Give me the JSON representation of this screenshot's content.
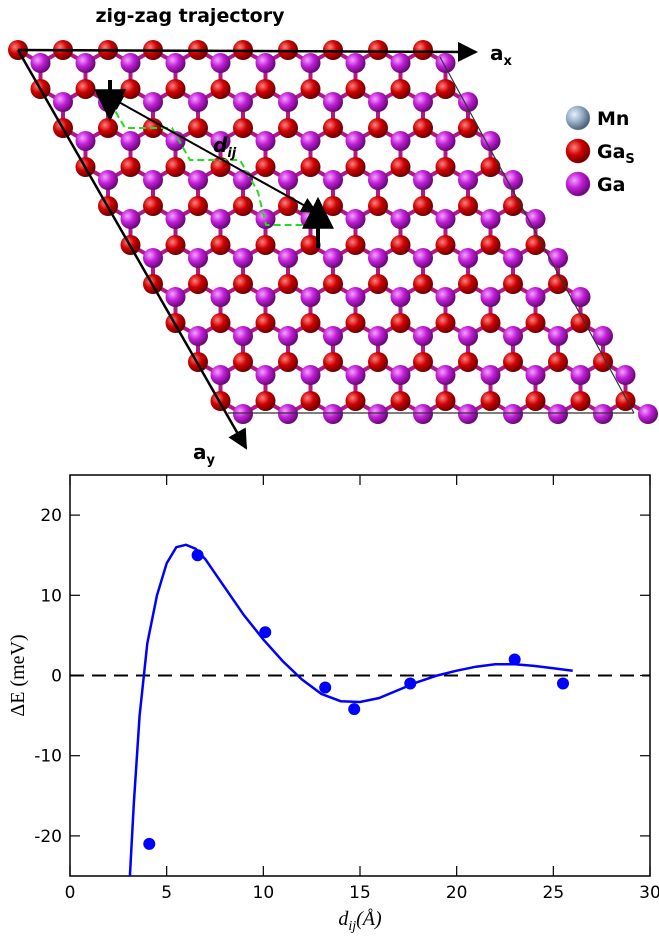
{
  "diagram": {
    "title": "zig-zag trajectory",
    "ax_label": {
      "base": "a",
      "sub": "x"
    },
    "ay_label": {
      "base": "a",
      "sub": "y"
    },
    "dij_label": {
      "base": "d",
      "sub": "ij"
    },
    "legend": [
      {
        "base": "Mn",
        "sub": null,
        "color": "#9ab0c8"
      },
      {
        "base": "Ga",
        "sub": "S",
        "color": "#d00000"
      },
      {
        "base": "Ga",
        "sub": null,
        "color": "#c21ed8"
      }
    ]
  },
  "chart_data": {
    "type": "scatter",
    "x_label": {
      "base": "d",
      "sub": "ij",
      "rest": "(Å)"
    },
    "y_label": "ΔE (meV)",
    "xlim": [
      0,
      30
    ],
    "xticks": [
      0,
      5,
      10,
      15,
      20,
      25,
      30
    ],
    "ylim": [
      -25,
      25
    ],
    "yticks": [
      -20,
      -10,
      0,
      10,
      20
    ],
    "hline": 0,
    "series": [
      {
        "style": "line",
        "color": "#0000ff",
        "x": [
          3.1,
          3.3,
          3.6,
          4.0,
          4.5,
          5.0,
          5.5,
          6.0,
          6.5,
          7.0,
          8.0,
          9.0,
          10.0,
          11.0,
          12.0,
          13.0,
          14.0,
          15.0,
          16.0,
          17.0,
          18.0,
          19.0,
          20.0,
          21.0,
          22.0,
          23.0,
          24.0,
          25.0,
          26.0
        ],
        "values": [
          -25,
          -16,
          -5,
          4,
          10,
          14,
          16,
          16.3,
          15.8,
          14.5,
          11,
          7.5,
          4.5,
          1.8,
          -0.5,
          -2.3,
          -3.2,
          -3.3,
          -2.8,
          -1.8,
          -0.8,
          0,
          0.6,
          1.1,
          1.4,
          1.4,
          1.2,
          0.9,
          0.6
        ]
      },
      {
        "style": "markers",
        "color": "#0000ff",
        "x": [
          4.1,
          6.6,
          10.1,
          13.2,
          14.7,
          17.6,
          23.0,
          25.5
        ],
        "values": [
          -21,
          15,
          5.4,
          -1.5,
          -4.2,
          -1,
          2,
          -1
        ]
      }
    ]
  }
}
